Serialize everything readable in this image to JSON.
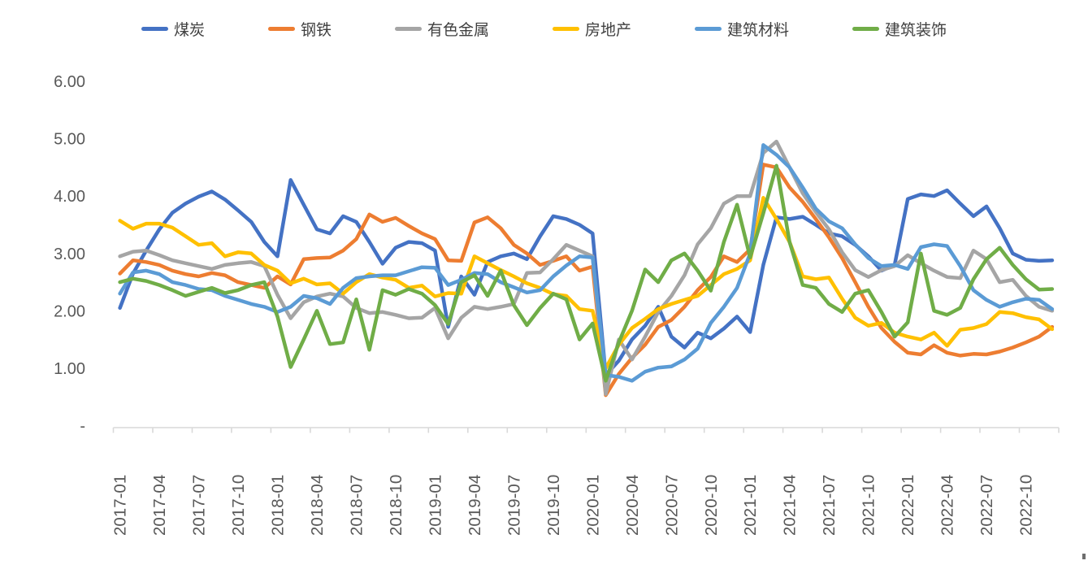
{
  "chart_data": {
    "type": "line",
    "title": "",
    "legend_position": "top",
    "grid": "none",
    "background": "#ffffff",
    "axis_color": "#d9d9d9",
    "tick_label_color": "#595959",
    "ylim": [
      0,
      6
    ],
    "y_tick_values": [
      6,
      5,
      4,
      3,
      2,
      1,
      0
    ],
    "y_tick_labels": [
      "6.00",
      "5.00",
      "4.00",
      "3.00",
      "2.00",
      "1.00",
      "-"
    ],
    "x_start": "2017-01",
    "x_end": "2022-12",
    "n_points": 72,
    "x_tick_every_months": 3,
    "x_tick_labels": [
      "2017-01",
      "2017-04",
      "2017-07",
      "2017-10",
      "2018-01",
      "2018-04",
      "2018-07",
      "2018-10",
      "2019-01",
      "2019-04",
      "2019-07",
      "2019-10",
      "2020-01",
      "2020-04",
      "2020-07",
      "2020-10",
      "2021-01",
      "2021-04",
      "2021-07",
      "2021-10",
      "2022-01",
      "2022-04",
      "2022-07",
      "2022-10"
    ],
    "series": [
      {
        "name": "煤炭",
        "color": "#4472C4",
        "values": [
          2.05,
          2.65,
          3.05,
          3.42,
          3.71,
          3.87,
          3.99,
          4.08,
          3.94,
          3.75,
          3.55,
          3.2,
          2.95,
          4.28,
          3.85,
          3.42,
          3.35,
          3.65,
          3.55,
          3.2,
          2.82,
          3.1,
          3.2,
          3.18,
          3.05,
          1.72,
          2.6,
          2.28,
          2.85,
          2.95,
          3.0,
          2.9,
          3.3,
          3.65,
          3.6,
          3.5,
          3.35,
          0.88,
          1.13,
          1.5,
          1.74,
          2.07,
          1.55,
          1.36,
          1.62,
          1.52,
          1.69,
          1.9,
          1.63,
          2.8,
          3.63,
          3.6,
          3.64,
          3.5,
          3.35,
          3.3,
          3.15,
          2.95,
          2.7,
          2.8,
          3.95,
          4.03,
          4.0,
          4.1,
          3.87,
          3.65,
          3.82,
          3.44,
          3.0,
          2.89,
          2.87,
          2.88
        ]
      },
      {
        "name": "钢铁",
        "color": "#ED7D31",
        "values": [
          2.65,
          2.88,
          2.85,
          2.8,
          2.7,
          2.64,
          2.6,
          2.66,
          2.62,
          2.5,
          2.45,
          2.4,
          2.6,
          2.46,
          2.9,
          2.92,
          2.93,
          3.05,
          3.25,
          3.68,
          3.55,
          3.62,
          3.48,
          3.35,
          3.25,
          2.88,
          2.87,
          3.54,
          3.63,
          3.44,
          3.15,
          3.0,
          2.8,
          2.87,
          2.95,
          2.7,
          2.77,
          0.53,
          0.9,
          1.18,
          1.41,
          1.72,
          1.84,
          2.07,
          2.36,
          2.59,
          2.95,
          2.85,
          3.07,
          4.55,
          4.5,
          4.15,
          3.9,
          3.6,
          3.28,
          2.92,
          2.5,
          2.07,
          1.7,
          1.46,
          1.27,
          1.24,
          1.4,
          1.27,
          1.22,
          1.25,
          1.24,
          1.29,
          1.36,
          1.45,
          1.55,
          1.72
        ]
      },
      {
        "name": "有色金属",
        "color": "#A5A5A5",
        "values": [
          2.95,
          3.03,
          3.05,
          2.97,
          2.88,
          2.83,
          2.78,
          2.73,
          2.8,
          2.83,
          2.85,
          2.78,
          2.28,
          1.87,
          2.15,
          2.25,
          2.3,
          2.25,
          2.05,
          1.96,
          1.98,
          1.93,
          1.87,
          1.88,
          2.05,
          1.52,
          1.88,
          2.07,
          2.03,
          2.07,
          2.12,
          2.66,
          2.67,
          2.9,
          3.15,
          3.05,
          2.95,
          0.55,
          1.5,
          1.15,
          1.55,
          1.98,
          2.26,
          2.62,
          3.16,
          3.44,
          3.87,
          4.0,
          4.0,
          4.75,
          4.95,
          4.5,
          4.05,
          3.72,
          3.42,
          3.02,
          2.71,
          2.59,
          2.71,
          2.78,
          2.97,
          2.83,
          2.7,
          2.59,
          2.57,
          3.05,
          2.9,
          2.5,
          2.54,
          2.26,
          2.07,
          2.0
        ]
      },
      {
        "name": "房地产",
        "color": "#FFC000",
        "values": [
          3.57,
          3.43,
          3.52,
          3.52,
          3.45,
          3.3,
          3.15,
          3.18,
          2.95,
          3.02,
          3.0,
          2.8,
          2.7,
          2.48,
          2.56,
          2.46,
          2.48,
          2.3,
          2.5,
          2.64,
          2.58,
          2.54,
          2.4,
          2.44,
          2.25,
          2.31,
          2.3,
          2.95,
          2.83,
          2.71,
          2.6,
          2.48,
          2.4,
          2.29,
          2.26,
          2.03,
          2.0,
          1.0,
          1.41,
          1.7,
          1.86,
          2.03,
          2.12,
          2.19,
          2.26,
          2.45,
          2.64,
          2.73,
          2.88,
          3.97,
          3.6,
          3.2,
          2.6,
          2.55,
          2.58,
          2.21,
          1.88,
          1.74,
          1.79,
          1.62,
          1.55,
          1.5,
          1.62,
          1.39,
          1.67,
          1.7,
          1.77,
          1.98,
          1.96,
          1.89,
          1.85,
          1.68
        ]
      },
      {
        "name": "建筑材料",
        "color": "#5B9BD5",
        "values": [
          2.3,
          2.67,
          2.7,
          2.64,
          2.5,
          2.45,
          2.38,
          2.36,
          2.26,
          2.19,
          2.12,
          2.07,
          1.98,
          2.07,
          2.26,
          2.22,
          2.12,
          2.4,
          2.57,
          2.6,
          2.62,
          2.62,
          2.69,
          2.76,
          2.75,
          2.45,
          2.54,
          2.66,
          2.64,
          2.5,
          2.41,
          2.32,
          2.36,
          2.6,
          2.79,
          2.95,
          2.93,
          0.88,
          0.85,
          0.78,
          0.94,
          1.01,
          1.03,
          1.15,
          1.34,
          1.79,
          2.07,
          2.4,
          3.0,
          4.89,
          4.72,
          4.5,
          4.15,
          3.78,
          3.56,
          3.44,
          3.16,
          2.92,
          2.78,
          2.8,
          2.73,
          3.11,
          3.16,
          3.13,
          2.78,
          2.36,
          2.19,
          2.07,
          2.15,
          2.21,
          2.19,
          2.03
        ]
      },
      {
        "name": "建筑装饰",
        "color": "#70AD47",
        "values": [
          2.5,
          2.56,
          2.52,
          2.45,
          2.36,
          2.26,
          2.33,
          2.4,
          2.31,
          2.36,
          2.45,
          2.5,
          1.9,
          1.02,
          1.5,
          2.0,
          1.42,
          1.45,
          2.2,
          1.32,
          2.36,
          2.28,
          2.38,
          2.3,
          2.1,
          1.77,
          2.5,
          2.62,
          2.26,
          2.7,
          2.1,
          1.75,
          2.05,
          2.3,
          2.2,
          1.5,
          1.78,
          0.78,
          1.45,
          2.0,
          2.72,
          2.5,
          2.88,
          3.0,
          2.7,
          2.35,
          3.2,
          3.85,
          2.93,
          3.7,
          4.53,
          3.2,
          2.45,
          2.4,
          2.12,
          1.98,
          2.3,
          2.36,
          1.98,
          1.55,
          1.8,
          3.0,
          2.0,
          1.93,
          2.05,
          2.55,
          2.9,
          3.1,
          2.8,
          2.55,
          2.37,
          2.38
        ]
      }
    ]
  }
}
